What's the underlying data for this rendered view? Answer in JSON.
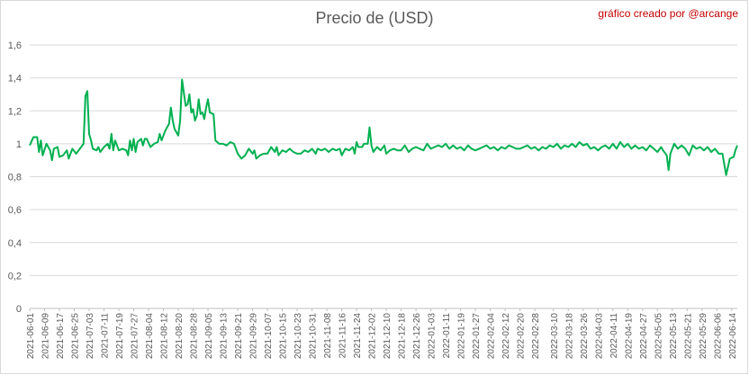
{
  "chart_data": {
    "type": "line",
    "title": "Precio de (USD)",
    "annotation": "gráfico creado por @arcange",
    "xlabel": "",
    "ylabel": "",
    "ylim": [
      0,
      1.6
    ],
    "yticks": [
      "0",
      "0,2",
      "0,4",
      "0,6",
      "0,8",
      "1",
      "1,2",
      "1,4",
      "1,6"
    ],
    "grid": "horizontal",
    "line_color": "#00b050",
    "x_start": "2021-06-01",
    "x_end": "2022-06-17",
    "xticks": [
      "2021-06-01",
      "2021-06-09",
      "2021-06-17",
      "2021-06-25",
      "2021-07-03",
      "2021-07-11",
      "2021-07-19",
      "2021-07-27",
      "2021-08-04",
      "2021-08-12",
      "2021-08-20",
      "2021-08-28",
      "2021-09-05",
      "2021-09-13",
      "2021-09-21",
      "2021-09-29",
      "2021-10-07",
      "2021-10-15",
      "2021-10-23",
      "2021-10-31",
      "2021-11-08",
      "2021-11-16",
      "2021-11-24",
      "2021-12-02",
      "2021-12-10",
      "2021-12-18",
      "2021-12-26",
      "2022-01-03",
      "2022-01-11",
      "2022-01-19",
      "2022-01-27",
      "2022-02-04",
      "2022-02-12",
      "2022-02-20",
      "2022-02-28",
      "2022-03-10",
      "2022-03-18",
      "2022-03-26",
      "2022-04-03",
      "2022-04-11",
      "2022-04-19",
      "2022-04-27",
      "2022-05-05",
      "2022-05-13",
      "2022-05-21",
      "2022-05-29",
      "2022-06-06",
      "2022-06-14"
    ],
    "series": [
      {
        "points": [
          [
            "2021-06-01",
            0.99
          ],
          [
            "2021-06-03",
            1.04
          ],
          [
            "2021-06-05",
            1.04
          ],
          [
            "2021-06-06",
            0.95
          ],
          [
            "2021-06-07",
            1.02
          ],
          [
            "2021-06-08",
            0.93
          ],
          [
            "2021-06-10",
            1.0
          ],
          [
            "2021-06-12",
            0.96
          ],
          [
            "2021-06-13",
            0.9
          ],
          [
            "2021-06-14",
            0.97
          ],
          [
            "2021-06-16",
            0.98
          ],
          [
            "2021-06-17",
            0.92
          ],
          [
            "2021-06-19",
            0.93
          ],
          [
            "2021-06-21",
            0.96
          ],
          [
            "2021-06-22",
            0.91
          ],
          [
            "2021-06-24",
            0.97
          ],
          [
            "2021-06-26",
            0.94
          ],
          [
            "2021-06-28",
            0.97
          ],
          [
            "2021-06-30",
            1.0
          ],
          [
            "2021-07-01",
            1.29
          ],
          [
            "2021-07-02",
            1.32
          ],
          [
            "2021-07-03",
            1.06
          ],
          [
            "2021-07-04",
            1.02
          ],
          [
            "2021-07-05",
            0.97
          ],
          [
            "2021-07-07",
            0.96
          ],
          [
            "2021-07-08",
            0.98
          ],
          [
            "2021-07-09",
            0.95
          ],
          [
            "2021-07-11",
            0.98
          ],
          [
            "2021-07-13",
            1.0
          ],
          [
            "2021-07-14",
            0.97
          ],
          [
            "2021-07-15",
            1.06
          ],
          [
            "2021-07-16",
            0.96
          ],
          [
            "2021-07-17",
            1.02
          ],
          [
            "2021-07-19",
            0.96
          ],
          [
            "2021-07-21",
            0.97
          ],
          [
            "2021-07-23",
            0.96
          ],
          [
            "2021-07-24",
            0.93
          ],
          [
            "2021-07-25",
            1.02
          ],
          [
            "2021-07-26",
            0.96
          ],
          [
            "2021-07-27",
            1.03
          ],
          [
            "2021-07-28",
            0.95
          ],
          [
            "2021-07-29",
            1.01
          ],
          [
            "2021-07-31",
            1.03
          ],
          [
            "2021-08-01",
            0.99
          ],
          [
            "2021-08-02",
            1.03
          ],
          [
            "2021-08-03",
            1.03
          ],
          [
            "2021-08-05",
            0.98
          ],
          [
            "2021-08-07",
            1.0
          ],
          [
            "2021-08-09",
            1.01
          ],
          [
            "2021-08-10",
            1.06
          ],
          [
            "2021-08-11",
            1.02
          ],
          [
            "2021-08-13",
            1.08
          ],
          [
            "2021-08-15",
            1.12
          ],
          [
            "2021-08-16",
            1.22
          ],
          [
            "2021-08-17",
            1.14
          ],
          [
            "2021-08-18",
            1.09
          ],
          [
            "2021-08-20",
            1.05
          ],
          [
            "2021-08-21",
            1.14
          ],
          [
            "2021-08-22",
            1.39
          ],
          [
            "2021-08-23",
            1.31
          ],
          [
            "2021-08-24",
            1.23
          ],
          [
            "2021-08-25",
            1.24
          ],
          [
            "2021-08-26",
            1.3
          ],
          [
            "2021-08-27",
            1.19
          ],
          [
            "2021-08-28",
            1.21
          ],
          [
            "2021-08-29",
            1.14
          ],
          [
            "2021-08-30",
            1.17
          ],
          [
            "2021-08-31",
            1.27
          ],
          [
            "2021-09-01",
            1.18
          ],
          [
            "2021-09-02",
            1.19
          ],
          [
            "2021-09-03",
            1.15
          ],
          [
            "2021-09-04",
            1.22
          ],
          [
            "2021-09-05",
            1.27
          ],
          [
            "2021-09-06",
            1.19
          ],
          [
            "2021-09-08",
            1.18
          ],
          [
            "2021-09-09",
            1.02
          ],
          [
            "2021-09-11",
            1.0
          ],
          [
            "2021-09-13",
            1.0
          ],
          [
            "2021-09-15",
            0.99
          ],
          [
            "2021-09-17",
            1.01
          ],
          [
            "2021-09-19",
            1.0
          ],
          [
            "2021-09-21",
            0.94
          ],
          [
            "2021-09-23",
            0.91
          ],
          [
            "2021-09-25",
            0.93
          ],
          [
            "2021-09-27",
            0.97
          ],
          [
            "2021-09-29",
            0.94
          ],
          [
            "2021-09-30",
            0.96
          ],
          [
            "2021-10-01",
            0.91
          ],
          [
            "2021-10-03",
            0.93
          ],
          [
            "2021-10-05",
            0.94
          ],
          [
            "2021-10-07",
            0.94
          ],
          [
            "2021-10-09",
            0.98
          ],
          [
            "2021-10-11",
            0.95
          ],
          [
            "2021-10-12",
            0.98
          ],
          [
            "2021-10-13",
            0.93
          ],
          [
            "2021-10-15",
            0.96
          ],
          [
            "2021-10-17",
            0.95
          ],
          [
            "2021-10-19",
            0.97
          ],
          [
            "2021-10-21",
            0.95
          ],
          [
            "2021-10-23",
            0.94
          ],
          [
            "2021-10-25",
            0.94
          ],
          [
            "2021-10-27",
            0.96
          ],
          [
            "2021-10-29",
            0.95
          ],
          [
            "2021-10-31",
            0.97
          ],
          [
            "2021-11-02",
            0.94
          ],
          [
            "2021-11-03",
            0.97
          ],
          [
            "2021-11-05",
            0.96
          ],
          [
            "2021-11-07",
            0.97
          ],
          [
            "2021-11-09",
            0.95
          ],
          [
            "2021-11-11",
            0.97
          ],
          [
            "2021-11-13",
            0.96
          ],
          [
            "2021-11-15",
            0.97
          ],
          [
            "2021-11-16",
            0.93
          ],
          [
            "2021-11-18",
            0.97
          ],
          [
            "2021-11-20",
            0.96
          ],
          [
            "2021-11-22",
            0.98
          ],
          [
            "2021-11-23",
            0.94
          ],
          [
            "2021-11-24",
            1.01
          ],
          [
            "2021-11-25",
            0.98
          ],
          [
            "2021-11-27",
            0.98
          ],
          [
            "2021-11-28",
            1.0
          ],
          [
            "2021-11-30",
            1.0
          ],
          [
            "2021-12-01",
            1.1
          ],
          [
            "2021-12-02",
            0.99
          ],
          [
            "2021-12-03",
            0.95
          ],
          [
            "2021-12-05",
            0.98
          ],
          [
            "2021-12-07",
            0.96
          ],
          [
            "2021-12-09",
            0.99
          ],
          [
            "2021-12-10",
            0.94
          ],
          [
            "2021-12-12",
            0.96
          ],
          [
            "2021-12-14",
            0.97
          ],
          [
            "2021-12-16",
            0.96
          ],
          [
            "2021-12-18",
            0.96
          ],
          [
            "2021-12-20",
            0.99
          ],
          [
            "2021-12-22",
            0.95
          ],
          [
            "2021-12-24",
            0.97
          ],
          [
            "2021-12-26",
            0.98
          ],
          [
            "2021-12-28",
            0.97
          ],
          [
            "2021-12-30",
            0.96
          ],
          [
            "2022-01-01",
            1.0
          ],
          [
            "2022-01-03",
            0.97
          ],
          [
            "2022-01-05",
            0.98
          ],
          [
            "2022-01-07",
            0.99
          ],
          [
            "2022-01-09",
            0.98
          ],
          [
            "2022-01-11",
            1.0
          ],
          [
            "2022-01-13",
            0.97
          ],
          [
            "2022-01-15",
            0.99
          ],
          [
            "2022-01-17",
            0.97
          ],
          [
            "2022-01-19",
            0.98
          ],
          [
            "2022-01-21",
            0.96
          ],
          [
            "2022-01-23",
            0.99
          ],
          [
            "2022-01-25",
            0.97
          ],
          [
            "2022-01-27",
            0.96
          ],
          [
            "2022-01-29",
            0.97
          ],
          [
            "2022-01-31",
            0.98
          ],
          [
            "2022-02-02",
            0.99
          ],
          [
            "2022-02-04",
            0.97
          ],
          [
            "2022-02-06",
            0.98
          ],
          [
            "2022-02-08",
            0.96
          ],
          [
            "2022-02-10",
            0.98
          ],
          [
            "2022-02-12",
            0.97
          ],
          [
            "2022-02-14",
            0.99
          ],
          [
            "2022-02-16",
            0.98
          ],
          [
            "2022-02-18",
            0.97
          ],
          [
            "2022-02-20",
            0.97
          ],
          [
            "2022-02-22",
            0.98
          ],
          [
            "2022-02-24",
            0.99
          ],
          [
            "2022-02-26",
            0.97
          ],
          [
            "2022-02-28",
            0.98
          ],
          [
            "2022-03-02",
            0.96
          ],
          [
            "2022-03-04",
            0.98
          ],
          [
            "2022-03-06",
            0.97
          ],
          [
            "2022-03-08",
            0.99
          ],
          [
            "2022-03-10",
            0.98
          ],
          [
            "2022-03-12",
            1.0
          ],
          [
            "2022-03-14",
            0.97
          ],
          [
            "2022-03-16",
            0.99
          ],
          [
            "2022-03-18",
            0.98
          ],
          [
            "2022-03-20",
            1.0
          ],
          [
            "2022-03-22",
            0.98
          ],
          [
            "2022-03-24",
            1.01
          ],
          [
            "2022-03-26",
            0.99
          ],
          [
            "2022-03-28",
            1.0
          ],
          [
            "2022-03-30",
            0.97
          ],
          [
            "2022-04-01",
            0.98
          ],
          [
            "2022-04-03",
            0.96
          ],
          [
            "2022-04-05",
            0.98
          ],
          [
            "2022-04-07",
            0.99
          ],
          [
            "2022-04-09",
            0.97
          ],
          [
            "2022-04-11",
            1.0
          ],
          [
            "2022-04-13",
            0.97
          ],
          [
            "2022-04-15",
            1.01
          ],
          [
            "2022-04-17",
            0.98
          ],
          [
            "2022-04-19",
            1.0
          ],
          [
            "2022-04-21",
            0.97
          ],
          [
            "2022-04-23",
            0.99
          ],
          [
            "2022-04-25",
            0.97
          ],
          [
            "2022-04-27",
            0.98
          ],
          [
            "2022-04-29",
            0.96
          ],
          [
            "2022-05-01",
            0.99
          ],
          [
            "2022-05-03",
            0.97
          ],
          [
            "2022-05-05",
            0.95
          ],
          [
            "2022-05-07",
            0.98
          ],
          [
            "2022-05-08",
            0.96
          ],
          [
            "2022-05-10",
            0.93
          ],
          [
            "2022-05-11",
            0.84
          ],
          [
            "2022-05-12",
            0.94
          ],
          [
            "2022-05-14",
            1.0
          ],
          [
            "2022-05-16",
            0.97
          ],
          [
            "2022-05-18",
            0.99
          ],
          [
            "2022-05-20",
            0.97
          ],
          [
            "2022-05-22",
            0.93
          ],
          [
            "2022-05-24",
            0.99
          ],
          [
            "2022-05-26",
            0.97
          ],
          [
            "2022-05-28",
            0.98
          ],
          [
            "2022-05-30",
            0.96
          ],
          [
            "2022-06-01",
            0.98
          ],
          [
            "2022-06-03",
            0.95
          ],
          [
            "2022-06-05",
            0.97
          ],
          [
            "2022-06-07",
            0.94
          ],
          [
            "2022-06-09",
            0.94
          ],
          [
            "2022-06-11",
            0.81
          ],
          [
            "2022-06-13",
            0.91
          ],
          [
            "2022-06-15",
            0.92
          ],
          [
            "2022-06-16",
            0.96
          ],
          [
            "2022-06-17",
            0.99
          ]
        ]
      }
    ]
  }
}
